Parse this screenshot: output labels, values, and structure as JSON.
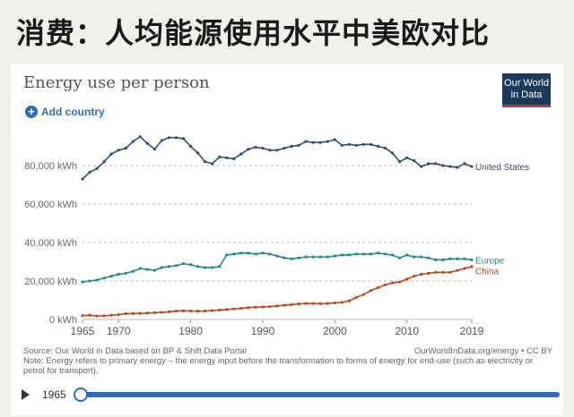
{
  "slide": {
    "title": "消费：人均能源使用水平中美欧对比"
  },
  "header": {
    "logo_line1": "Our World",
    "logo_line2": "in Data",
    "add_country": "Add country"
  },
  "footer": {
    "source": "Source: Our World in Data based on BP & Shift Data Portal",
    "credit": "OurWorldInData.org/energy • CC BY",
    "note": "Note: Energy refers to primary energy – the energy input before the transformation to forms of energy for end-use (such as electricity or petrol for transport)."
  },
  "timeline": {
    "start_year": "1965",
    "end_year": "2019"
  },
  "colors": {
    "united_states": "#3b4a6b",
    "europe": "#1e8c7e",
    "china": "#c0461b",
    "accent": "#2c6fb6"
  },
  "chart_data": {
    "type": "line",
    "title": "Energy use per person",
    "xlabel": "",
    "ylabel": "",
    "xlim": [
      1965,
      2019
    ],
    "ylim": [
      0,
      100000
    ],
    "x_ticks": [
      "1965",
      "1970",
      "1980",
      "1990",
      "2000",
      "2010",
      "2019"
    ],
    "y_ticks": [
      "0 kWh",
      "20,000 kWh",
      "40,000 kWh",
      "60,000 kWh",
      "80,000 kWh"
    ],
    "x": [
      1965,
      1966,
      1967,
      1968,
      1969,
      1970,
      1971,
      1972,
      1973,
      1974,
      1975,
      1976,
      1977,
      1978,
      1979,
      1980,
      1981,
      1982,
      1983,
      1984,
      1985,
      1986,
      1987,
      1988,
      1989,
      1990,
      1991,
      1992,
      1993,
      1994,
      1995,
      1996,
      1997,
      1998,
      1999,
      2000,
      2001,
      2002,
      2003,
      2004,
      2005,
      2006,
      2007,
      2008,
      2009,
      2010,
      2011,
      2012,
      2013,
      2014,
      2015,
      2016,
      2017,
      2018,
      2019
    ],
    "series": [
      {
        "name": "United States",
        "color": "#3b4a6b",
        "values": [
          73000,
          76500,
          78500,
          82000,
          86000,
          88000,
          89000,
          92500,
          95000,
          91500,
          88500,
          93000,
          94500,
          94500,
          94000,
          90000,
          86500,
          82000,
          81000,
          84500,
          84000,
          83500,
          86000,
          88500,
          89500,
          89000,
          88000,
          88000,
          89000,
          90000,
          90500,
          92500,
          92000,
          92000,
          92500,
          93500,
          90500,
          91000,
          90500,
          91000,
          91000,
          90000,
          89000,
          86500,
          82000,
          84000,
          82500,
          79500,
          81000,
          81000,
          80000,
          79500,
          79000,
          81000,
          79500
        ]
      },
      {
        "name": "Europe",
        "color": "#1e8c7e",
        "values": [
          19500,
          20000,
          20500,
          21500,
          22500,
          23500,
          24000,
          25000,
          26500,
          26000,
          25500,
          27000,
          27500,
          28000,
          29000,
          28500,
          27500,
          27000,
          27000,
          27500,
          33500,
          34000,
          34500,
          34500,
          34000,
          34500,
          34000,
          33000,
          32000,
          31500,
          32000,
          32500,
          32500,
          32500,
          32500,
          33000,
          33500,
          33500,
          34000,
          34000,
          34000,
          34500,
          34000,
          33500,
          32000,
          33500,
          32500,
          32500,
          32000,
          31000,
          31000,
          31500,
          31500,
          31500,
          31000
        ]
      },
      {
        "name": "China",
        "color": "#c0461b",
        "values": [
          2000,
          2200,
          1800,
          1900,
          2200,
          2500,
          3000,
          3100,
          3200,
          3300,
          3500,
          3700,
          4000,
          4400,
          4500,
          4400,
          4300,
          4400,
          4600,
          4900,
          5200,
          5500,
          5800,
          6200,
          6400,
          6500,
          6700,
          7000,
          7400,
          7700,
          8100,
          8300,
          8300,
          8200,
          8300,
          8600,
          8900,
          9700,
          11500,
          13000,
          15000,
          16500,
          18000,
          19000,
          19500,
          21000,
          22500,
          23500,
          24000,
          24500,
          24500,
          24500,
          25500,
          26500,
          27500
        ]
      }
    ]
  }
}
